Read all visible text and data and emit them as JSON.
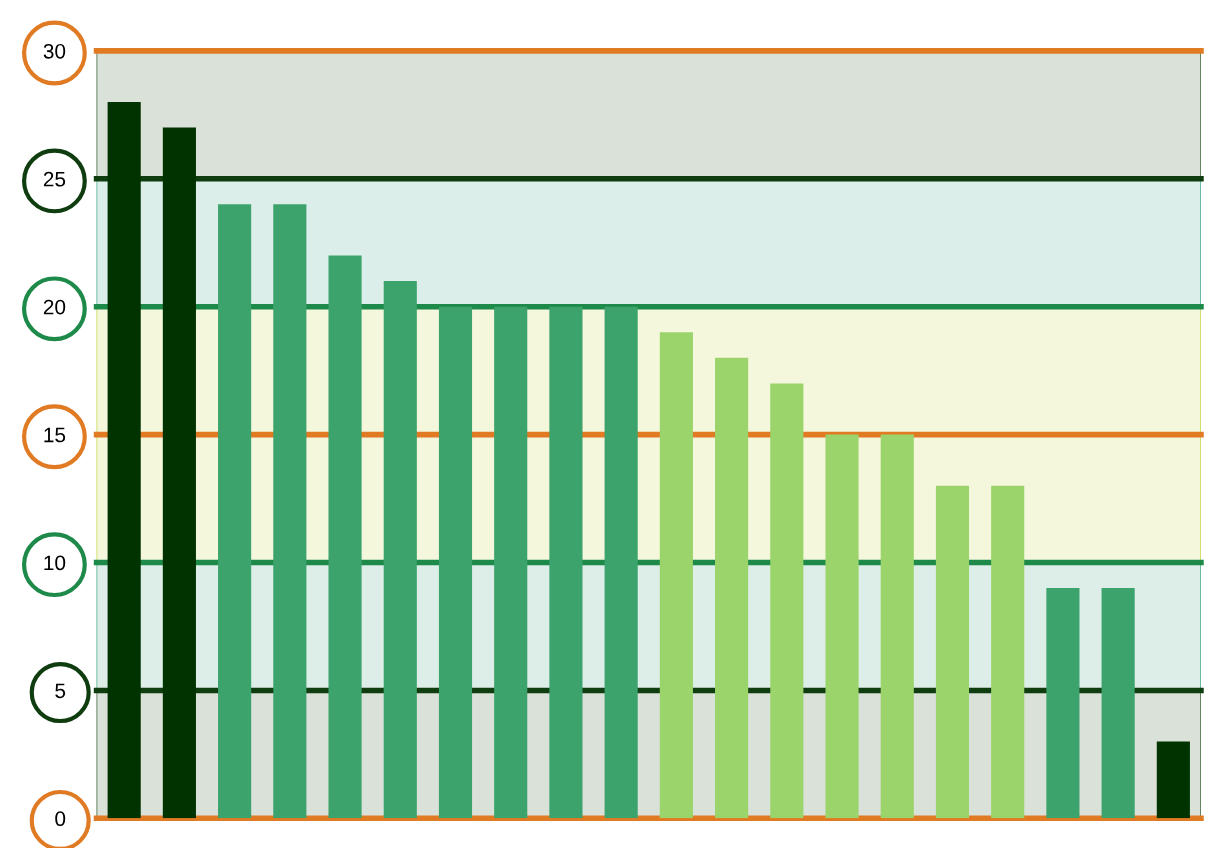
{
  "chart_data": {
    "type": "bar",
    "categories": [
      null,
      null,
      null,
      null,
      null,
      null,
      null,
      null,
      null,
      null,
      null,
      null,
      null,
      null,
      null,
      null,
      null,
      null,
      null,
      null
    ],
    "values": [
      28,
      27,
      24,
      24,
      22,
      21,
      20,
      20,
      20,
      20,
      19,
      18,
      17,
      15,
      15,
      13,
      13,
      9,
      9,
      3
    ],
    "colors": [
      "#003300",
      "#003300",
      "#3ca36c",
      "#3ca36c",
      "#3ca36c",
      "#3ca36c",
      "#3ca36c",
      "#3ca36c",
      "#3ca36c",
      "#3ca36c",
      "#9bd46a",
      "#9bd46a",
      "#9bd46a",
      "#9bd46a",
      "#9bd46a",
      "#9bd46a",
      "#9bd46a",
      "#3ca36c",
      "#3ca36c",
      "#003300"
    ],
    "ylim": [
      0,
      30
    ],
    "yticks": [
      0,
      5,
      10,
      15,
      20,
      25,
      30
    ],
    "grid": false,
    "legend": false,
    "bands": [
      {
        "axis": "y",
        "from": 0,
        "to": 5,
        "color": "#2f5a2f"
      },
      {
        "axis": "y",
        "from": 5,
        "to": 10,
        "color": "#3ca37c"
      },
      {
        "axis": "y",
        "from": 10,
        "to": 20,
        "color": "#c4d23c"
      },
      {
        "axis": "y",
        "from": 20,
        "to": 25,
        "color": "#3ca38c"
      },
      {
        "axis": "y",
        "from": 25,
        "to": 30,
        "color": "#2f5a2f"
      }
    ],
    "ref_lines": [
      {
        "axis": "y",
        "value": 0,
        "color": "#e07b24"
      },
      {
        "axis": "y",
        "value": 5,
        "color": "#0f3d0f"
      },
      {
        "axis": "y",
        "value": 10,
        "color": "#1e8a4a"
      },
      {
        "axis": "y",
        "value": 15,
        "color": "#e07b24"
      },
      {
        "axis": "y",
        "value": 20,
        "color": "#1e8a4a"
      },
      {
        "axis": "y",
        "value": 25,
        "color": "#0f3d0f"
      },
      {
        "axis": "y",
        "value": 30,
        "color": "#e07b24"
      }
    ]
  }
}
